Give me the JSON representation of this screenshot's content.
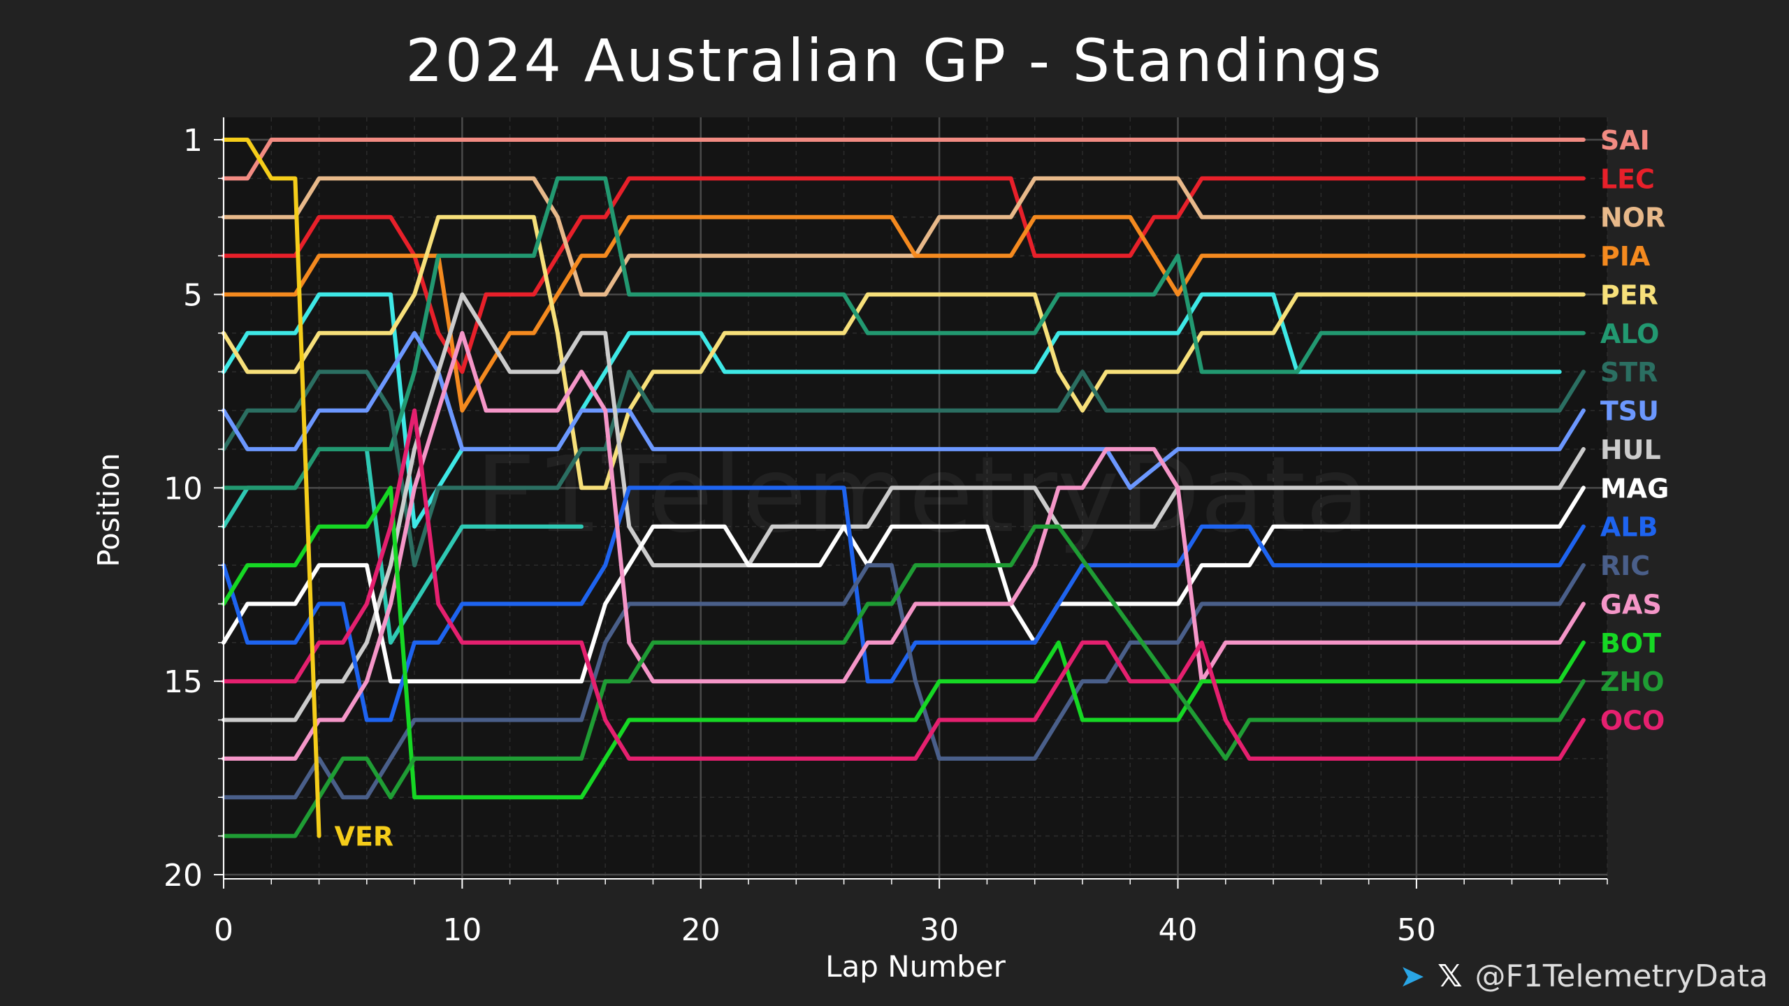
{
  "chart_data": {
    "type": "line",
    "title": "2024 Australian GP - Standings",
    "xlabel": "Lap Number",
    "ylabel": "Position",
    "xlim": [
      0,
      58
    ],
    "ylim": [
      20,
      1
    ],
    "xticks": [
      0,
      10,
      20,
      30,
      40,
      50
    ],
    "yticks": [
      1,
      5,
      10,
      15,
      20
    ],
    "grid": true,
    "legend": "right end labels",
    "watermark": "F1TelemetryData",
    "series": [
      {
        "name": "SAI",
        "color": "#f28b82",
        "x": [
          0,
          1,
          2,
          3,
          56,
          57
        ],
        "y": [
          2,
          2,
          1,
          1,
          1,
          1
        ]
      },
      {
        "name": "LEC",
        "color": "#e8202a",
        "x": [
          0,
          1,
          2,
          3,
          4,
          5,
          6,
          7,
          8,
          9,
          10,
          11,
          12,
          13,
          14,
          15,
          16,
          17,
          33,
          34,
          38,
          39,
          40,
          41,
          57
        ],
        "y": [
          4,
          4,
          4,
          4,
          3,
          3,
          3,
          3,
          4,
          6,
          7,
          5,
          5,
          5,
          4,
          3,
          3,
          2,
          2,
          4,
          4,
          3,
          3,
          2,
          2
        ]
      },
      {
        "name": "NOR",
        "color": "#e8b98a",
        "x": [
          0,
          1,
          2,
          3,
          4,
          13,
          14,
          15,
          16,
          17,
          18,
          29,
          30,
          33,
          34,
          40,
          41,
          57
        ],
        "y": [
          3,
          3,
          3,
          3,
          2,
          2,
          3,
          5,
          5,
          4,
          4,
          4,
          3,
          3,
          2,
          2,
          3,
          3
        ]
      },
      {
        "name": "PIA",
        "color": "#f58a1f",
        "x": [
          0,
          1,
          2,
          3,
          4,
          9,
          10,
          11,
          12,
          13,
          14,
          15,
          16,
          17,
          28,
          29,
          33,
          34,
          38,
          39,
          40,
          41,
          57
        ],
        "y": [
          5,
          5,
          5,
          5,
          4,
          4,
          8,
          7,
          6,
          6,
          5,
          4,
          4,
          3,
          3,
          4,
          4,
          3,
          3,
          4,
          5,
          4,
          4
        ]
      },
      {
        "name": "PER",
        "color": "#f7e07a",
        "x": [
          0,
          1,
          2,
          3,
          4,
          7,
          8,
          9,
          13,
          14,
          15,
          16,
          17,
          18,
          20,
          21,
          26,
          27,
          34,
          35,
          36,
          37,
          40,
          41,
          44,
          45,
          57
        ],
        "y": [
          6,
          7,
          7,
          7,
          6,
          6,
          5,
          3,
          3,
          6,
          10,
          10,
          8,
          7,
          7,
          6,
          6,
          5,
          5,
          7,
          8,
          7,
          7,
          6,
          6,
          5,
          5
        ]
      },
      {
        "name": "ALO",
        "color": "#229971",
        "x": [
          0,
          1,
          2,
          3,
          4,
          5,
          6,
          7,
          8,
          9,
          13,
          14,
          15,
          16,
          17,
          26,
          27,
          34,
          35,
          39,
          40,
          41,
          45,
          46,
          57
        ],
        "y": [
          10,
          10,
          10,
          10,
          9,
          9,
          9,
          9,
          7,
          4,
          4,
          2,
          2,
          2,
          5,
          5,
          6,
          6,
          5,
          5,
          4,
          7,
          7,
          6,
          6
        ]
      },
      {
        "name": "STR",
        "color": "#2b6f62",
        "x": [
          0,
          1,
          2,
          3,
          4,
          6,
          7,
          8,
          9,
          10,
          14,
          15,
          16,
          17,
          18,
          35,
          36,
          37,
          56,
          57
        ],
        "y": [
          9,
          8,
          8,
          8,
          7,
          7,
          8,
          12,
          10,
          10,
          10,
          9,
          9,
          7,
          8,
          8,
          7,
          8,
          8,
          7
        ]
      },
      {
        "name": "TSU",
        "color": "#6c98ff",
        "x": [
          0,
          1,
          2,
          3,
          4,
          6,
          7,
          8,
          9,
          10,
          14,
          15,
          16,
          17,
          18,
          37,
          38,
          40,
          41,
          56,
          57
        ],
        "y": [
          8,
          9,
          9,
          9,
          8,
          8,
          7,
          6,
          7,
          9,
          9,
          8,
          8,
          8,
          9,
          9,
          10,
          9,
          9,
          9,
          8
        ]
      },
      {
        "name": "HUL",
        "color": "#cccccc",
        "x": [
          0,
          1,
          2,
          3,
          4,
          5,
          6,
          7,
          8,
          9,
          10,
          11,
          12,
          13,
          14,
          15,
          16,
          17,
          18,
          22,
          23,
          27,
          28,
          29,
          34,
          35,
          39,
          40,
          56,
          57
        ],
        "y": [
          16,
          16,
          16,
          16,
          15,
          15,
          14,
          12,
          9,
          7,
          5,
          6,
          7,
          7,
          7,
          6,
          6,
          11,
          12,
          12,
          11,
          11,
          10,
          10,
          10,
          11,
          11,
          10,
          10,
          9
        ]
      },
      {
        "name": "MAG",
        "color": "#ffffff",
        "x": [
          0,
          1,
          2,
          3,
          4,
          6,
          7,
          15,
          16,
          17,
          18,
          21,
          22,
          23,
          25,
          26,
          27,
          28,
          32,
          33,
          34,
          35,
          40,
          41,
          43,
          44,
          56,
          57
        ],
        "y": [
          14,
          13,
          13,
          13,
          12,
          12,
          15,
          15,
          13,
          12,
          11,
          11,
          12,
          12,
          12,
          11,
          12,
          11,
          11,
          13,
          14,
          13,
          13,
          12,
          12,
          11,
          11,
          10
        ]
      },
      {
        "name": "ALB",
        "color": "#1e64f0",
        "x": [
          0,
          1,
          2,
          3,
          4,
          5,
          6,
          7,
          8,
          9,
          10,
          11,
          15,
          16,
          17,
          26,
          27,
          28,
          29,
          34,
          35,
          36,
          40,
          41,
          43,
          44,
          56,
          57
        ],
        "y": [
          12,
          14,
          14,
          14,
          13,
          13,
          16,
          16,
          14,
          14,
          13,
          13,
          13,
          12,
          10,
          10,
          15,
          15,
          14,
          14,
          13,
          12,
          12,
          11,
          11,
          12,
          12,
          11
        ]
      },
      {
        "name": "RIC",
        "color": "#4a5f8a",
        "x": [
          0,
          1,
          2,
          3,
          4,
          5,
          6,
          7,
          8,
          9,
          10,
          11,
          15,
          16,
          17,
          26,
          27,
          28,
          29,
          30,
          34,
          35,
          36,
          37,
          38,
          40,
          41,
          56,
          57
        ],
        "y": [
          18,
          18,
          18,
          18,
          17,
          18,
          18,
          17,
          16,
          16,
          16,
          16,
          16,
          14,
          13,
          13,
          12,
          12,
          15,
          17,
          17,
          16,
          15,
          15,
          14,
          14,
          13,
          13,
          12
        ]
      },
      {
        "name": "GAS",
        "color": "#f596c8",
        "x": [
          0,
          1,
          2,
          3,
          4,
          5,
          6,
          7,
          8,
          9,
          10,
          11,
          13,
          14,
          15,
          16,
          17,
          18,
          26,
          27,
          28,
          29,
          33,
          34,
          35,
          36,
          37,
          39,
          40,
          41,
          42,
          56,
          57
        ],
        "y": [
          17,
          17,
          17,
          17,
          16,
          16,
          15,
          13,
          10,
          8,
          6,
          8,
          8,
          8,
          7,
          8,
          14,
          15,
          15,
          14,
          14,
          13,
          13,
          12,
          10,
          10,
          9,
          9,
          10,
          15,
          14,
          14,
          13
        ]
      },
      {
        "name": "BOT",
        "color": "#16d824",
        "x": [
          0,
          1,
          2,
          3,
          4,
          6,
          7,
          8,
          15,
          16,
          17,
          29,
          30,
          34,
          35,
          36,
          40,
          41,
          56,
          57
        ],
        "y": [
          13,
          12,
          12,
          12,
          11,
          11,
          10,
          18,
          18,
          17,
          16,
          16,
          15,
          15,
          14,
          16,
          16,
          15,
          15,
          14
        ]
      },
      {
        "name": "ZHO",
        "color": "#1f9d34",
        "x": [
          0,
          1,
          2,
          3,
          4,
          5,
          6,
          7,
          8,
          15,
          16,
          17,
          18,
          26,
          27,
          28,
          29,
          33,
          34,
          35,
          42,
          43,
          56,
          57
        ],
        "y": [
          19,
          19,
          19,
          19,
          18,
          17,
          17,
          18,
          17,
          17,
          15,
          15,
          14,
          14,
          13,
          13,
          12,
          12,
          11,
          11,
          17,
          16,
          16,
          15
        ]
      },
      {
        "name": "OCO",
        "color": "#e5206f",
        "x": [
          0,
          1,
          2,
          3,
          4,
          5,
          6,
          7,
          8,
          9,
          10,
          15,
          16,
          17,
          18,
          29,
          30,
          34,
          35,
          36,
          37,
          38,
          40,
          41,
          42,
          43,
          56,
          57
        ],
        "y": [
          15,
          15,
          15,
          15,
          14,
          14,
          13,
          11,
          8,
          13,
          14,
          14,
          16,
          17,
          17,
          17,
          16,
          16,
          15,
          14,
          14,
          15,
          15,
          14,
          16,
          17,
          17,
          16
        ]
      },
      {
        "name": "VER",
        "color": "#f5cd1a",
        "x": [
          0,
          1,
          2,
          3,
          4
        ],
        "y": [
          1,
          1,
          2,
          2,
          19
        ]
      }
    ],
    "extra_lines": [
      {
        "color": "#3ee8e6",
        "x": [
          0,
          1,
          2,
          3,
          4,
          6,
          7,
          8,
          9,
          10,
          14,
          15,
          16,
          17,
          18,
          20,
          21,
          34,
          35,
          40,
          41,
          43,
          44,
          45,
          56
        ],
        "y": [
          7,
          6,
          6,
          6,
          5,
          5,
          5,
          11,
          10,
          9,
          9,
          8,
          7,
          6,
          6,
          6,
          7,
          7,
          6,
          6,
          5,
          5,
          5,
          7,
          7
        ]
      },
      {
        "color": "#2fc9b4",
        "x": [
          0,
          1,
          2,
          3,
          4,
          5,
          6,
          7,
          8,
          9,
          10,
          15
        ],
        "y": [
          11,
          10,
          10,
          10,
          9,
          9,
          9,
          14,
          13,
          12,
          11,
          11
        ]
      }
    ]
  },
  "footer": {
    "handle": "@F1TelemetryData",
    "telegram_icon": "telegram-icon",
    "x_icon": "x-logo-icon"
  }
}
